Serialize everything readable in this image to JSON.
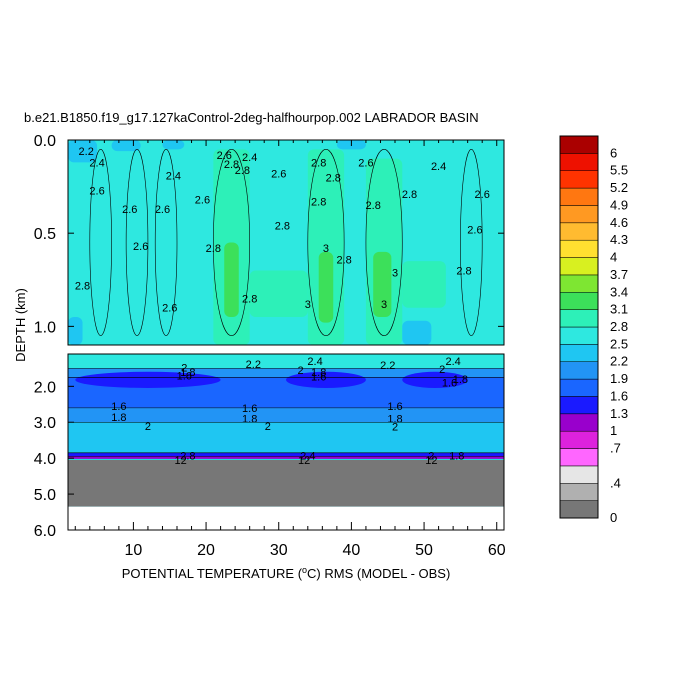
{
  "chart_data": {
    "type": "heatmap",
    "title": "b.e21.B1850.f19_g17.127kaControl-2deg-halfhourpop.002 LABRADOR BASIN",
    "xlabel_prefix": "POTENTIAL TEMPERATURE (",
    "xlabel_degree": "o",
    "xlabel_suffix": "C) RMS (MODEL - OBS)",
    "ylabel": "DEPTH (km)",
    "xlim": [
      1,
      61
    ],
    "x_ticks": [
      "10",
      "20",
      "30",
      "40",
      "50",
      "60"
    ],
    "x_tick_values": [
      10,
      20,
      30,
      40,
      50,
      60
    ],
    "upper_panel": {
      "ylim": [
        0.0,
        1.1
      ],
      "y_ticks": [
        "0.0",
        "0.5",
        "1.0"
      ],
      "y_tick_values": [
        0.0,
        0.5,
        1.0
      ]
    },
    "lower_panel": {
      "ylim": [
        1.1,
        6.0
      ],
      "y_ticks": [
        "2.0",
        "3.0",
        "4.0",
        "5.0",
        "6.0"
      ],
      "y_tick_values": [
        2.0,
        3.0,
        4.0,
        5.0,
        6.0
      ],
      "bottom_depth": 4.05,
      "white_below": 5.35
    },
    "colorbar": {
      "labels": [
        "6",
        "5.5",
        "5.2",
        "4.9",
        "4.6",
        "4.3",
        "4",
        "3.7",
        "3.4",
        "3.1",
        "2.8",
        "2.5",
        "2.2",
        "1.9",
        "1.6",
        "1.3",
        "1",
        ".7",
        ".4",
        "0"
      ],
      "label_values": [
        6,
        5.5,
        5.2,
        4.9,
        4.6,
        4.3,
        4,
        3.7,
        3.4,
        3.1,
        2.8,
        2.5,
        2.2,
        1.9,
        1.6,
        1.3,
        1,
        0.7,
        0.4,
        0
      ]
    },
    "contour_labels": [
      {
        "text": "2.2",
        "x": 3.5,
        "y": 0.06,
        "panel": "upper"
      },
      {
        "text": "2.4",
        "x": 5,
        "y": 0.12,
        "panel": "upper"
      },
      {
        "text": "2.6",
        "x": 5,
        "y": 0.27,
        "panel": "upper"
      },
      {
        "text": "2.6",
        "x": 9.5,
        "y": 0.37,
        "panel": "upper"
      },
      {
        "text": "2.6",
        "x": 14,
        "y": 0.37,
        "panel": "upper"
      },
      {
        "text": "2.4",
        "x": 15.5,
        "y": 0.19,
        "panel": "upper"
      },
      {
        "text": "2.6",
        "x": 19.5,
        "y": 0.32,
        "panel": "upper"
      },
      {
        "text": "2.6",
        "x": 22.5,
        "y": 0.08,
        "panel": "upper"
      },
      {
        "text": "2.8",
        "x": 23.5,
        "y": 0.13,
        "panel": "upper"
      },
      {
        "text": "2.4",
        "x": 26,
        "y": 0.09,
        "panel": "upper"
      },
      {
        "text": "2.8",
        "x": 25,
        "y": 0.16,
        "panel": "upper"
      },
      {
        "text": "2.6",
        "x": 30,
        "y": 0.18,
        "panel": "upper"
      },
      {
        "text": "2.8",
        "x": 35.5,
        "y": 0.12,
        "panel": "upper"
      },
      {
        "text": "2.8",
        "x": 37.5,
        "y": 0.2,
        "panel": "upper"
      },
      {
        "text": "2.8",
        "x": 35.5,
        "y": 0.33,
        "panel": "upper"
      },
      {
        "text": "2.6",
        "x": 42,
        "y": 0.12,
        "panel": "upper"
      },
      {
        "text": "2.8",
        "x": 43,
        "y": 0.35,
        "panel": "upper"
      },
      {
        "text": "2.8",
        "x": 48,
        "y": 0.29,
        "panel": "upper"
      },
      {
        "text": "2.4",
        "x": 52,
        "y": 0.14,
        "panel": "upper"
      },
      {
        "text": "2.6",
        "x": 58,
        "y": 0.29,
        "panel": "upper"
      },
      {
        "text": "2.6",
        "x": 57,
        "y": 0.48,
        "panel": "upper"
      },
      {
        "text": "2.8",
        "x": 30.5,
        "y": 0.46,
        "panel": "upper"
      },
      {
        "text": "2.6",
        "x": 11,
        "y": 0.57,
        "panel": "upper"
      },
      {
        "text": "2.8",
        "x": 21,
        "y": 0.58,
        "panel": "upper"
      },
      {
        "text": "3",
        "x": 36.5,
        "y": 0.58,
        "panel": "upper"
      },
      {
        "text": "2.8",
        "x": 39,
        "y": 0.64,
        "panel": "upper"
      },
      {
        "text": "3",
        "x": 46,
        "y": 0.71,
        "panel": "upper"
      },
      {
        "text": "2.8",
        "x": 55.5,
        "y": 0.7,
        "panel": "upper"
      },
      {
        "text": "2.8",
        "x": 3,
        "y": 0.78,
        "panel": "upper"
      },
      {
        "text": "2.8",
        "x": 26,
        "y": 0.85,
        "panel": "upper"
      },
      {
        "text": "3",
        "x": 34,
        "y": 0.88,
        "panel": "upper"
      },
      {
        "text": "3",
        "x": 44.5,
        "y": 0.88,
        "panel": "upper"
      },
      {
        "text": "2.6",
        "x": 15,
        "y": 0.9,
        "panel": "upper"
      },
      {
        "text": "2",
        "x": 17,
        "y": 1.48,
        "panel": "lower"
      },
      {
        "text": "1.8",
        "x": 17.5,
        "y": 1.6,
        "panel": "lower"
      },
      {
        "text": "1.6",
        "x": 17,
        "y": 1.7,
        "panel": "lower"
      },
      {
        "text": "2.2",
        "x": 26.5,
        "y": 1.38,
        "panel": "lower"
      },
      {
        "text": "2.4",
        "x": 35,
        "y": 1.3,
        "panel": "lower"
      },
      {
        "text": "2",
        "x": 33,
        "y": 1.55,
        "panel": "lower"
      },
      {
        "text": "1.8",
        "x": 35.5,
        "y": 1.6,
        "panel": "lower"
      },
      {
        "text": "1.6",
        "x": 35.5,
        "y": 1.72,
        "panel": "lower"
      },
      {
        "text": "2.2",
        "x": 45,
        "y": 1.4,
        "panel": "lower"
      },
      {
        "text": "2.4",
        "x": 54,
        "y": 1.3,
        "panel": "lower"
      },
      {
        "text": "2",
        "x": 52.5,
        "y": 1.52,
        "panel": "lower"
      },
      {
        "text": "1.8",
        "x": 55,
        "y": 1.8,
        "panel": "lower"
      },
      {
        "text": "1.6",
        "x": 53.5,
        "y": 1.9,
        "panel": "lower"
      },
      {
        "text": "1.6",
        "x": 8,
        "y": 2.55,
        "panel": "lower"
      },
      {
        "text": "1.8",
        "x": 8,
        "y": 2.85,
        "panel": "lower"
      },
      {
        "text": "2",
        "x": 12,
        "y": 3.1,
        "panel": "lower"
      },
      {
        "text": "1.6",
        "x": 26,
        "y": 2.6,
        "panel": "lower"
      },
      {
        "text": "1.8",
        "x": 26,
        "y": 2.9,
        "panel": "lower"
      },
      {
        "text": "2",
        "x": 28.5,
        "y": 3.1,
        "panel": "lower"
      },
      {
        "text": "1.6",
        "x": 46,
        "y": 2.55,
        "panel": "lower"
      },
      {
        "text": "1.8",
        "x": 46,
        "y": 2.9,
        "panel": "lower"
      },
      {
        "text": "2",
        "x": 46,
        "y": 3.12,
        "panel": "lower"
      },
      {
        "text": "2.8",
        "x": 17.5,
        "y": 3.92,
        "panel": "lower"
      },
      {
        "text": "12",
        "x": 16.5,
        "y": 4.05,
        "panel": "lower"
      },
      {
        "text": "2.4",
        "x": 34,
        "y": 3.92,
        "panel": "lower"
      },
      {
        "text": "12",
        "x": 33.5,
        "y": 4.05,
        "panel": "lower"
      },
      {
        "text": "2",
        "x": 51,
        "y": 3.92,
        "panel": "lower"
      },
      {
        "text": "12",
        "x": 51,
        "y": 4.05,
        "panel": "lower"
      },
      {
        "text": "1.8",
        "x": 54.5,
        "y": 3.92,
        "panel": "lower"
      }
    ]
  }
}
